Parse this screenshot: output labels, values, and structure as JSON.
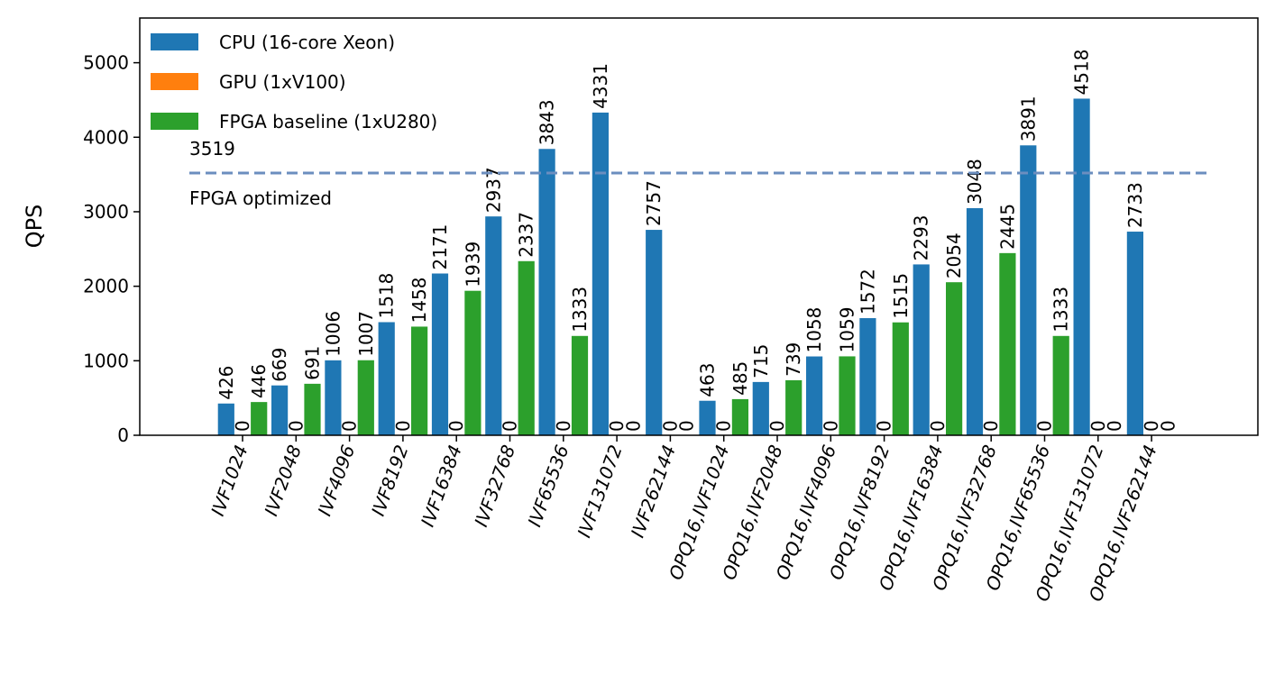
{
  "chart_data": {
    "type": "bar",
    "title": "",
    "xlabel": "",
    "ylabel": "QPS",
    "ylim": [
      0,
      5600
    ],
    "yticks": [
      0,
      1000,
      2000,
      3000,
      4000,
      5000
    ],
    "grid": false,
    "legend_position": "top-left",
    "categories": [
      "IVF1024",
      "IVF2048",
      "IVF4096",
      "IVF8192",
      "IVF16384",
      "IVF32768",
      "IVF65536",
      "IVF131072",
      "IVF262144",
      "OPQ16,IVF1024",
      "OPQ16,IVF2048",
      "OPQ16,IVF4096",
      "OPQ16,IVF8192",
      "OPQ16,IVF16384",
      "OPQ16,IVF32768",
      "OPQ16,IVF65536",
      "OPQ16,IVF131072",
      "OPQ16,IVF262144"
    ],
    "series": [
      {
        "name": "CPU (16-core Xeon)",
        "color": "#1f77b4",
        "values": [
          426,
          669,
          1006,
          1518,
          2171,
          2937,
          3843,
          4331,
          2757,
          463,
          715,
          1058,
          1572,
          2293,
          3048,
          3891,
          4518,
          2733
        ]
      },
      {
        "name": "GPU (1xV100)",
        "color": "#ff7f0e",
        "values": [
          0,
          0,
          0,
          0,
          0,
          0,
          0,
          0,
          0,
          0,
          0,
          0,
          0,
          0,
          0,
          0,
          0,
          0
        ]
      },
      {
        "name": "FPGA baseline (1xU280)",
        "color": "#2ca02c",
        "values": [
          446,
          691,
          1007,
          1458,
          1939,
          2337,
          1333,
          0,
          0,
          485,
          739,
          1059,
          1515,
          2054,
          2445,
          1333,
          0,
          0
        ]
      }
    ],
    "reference_line": {
      "value": 3519,
      "value_label": "3519",
      "label": "FPGA optimized",
      "color": "#6b8ebf"
    }
  }
}
